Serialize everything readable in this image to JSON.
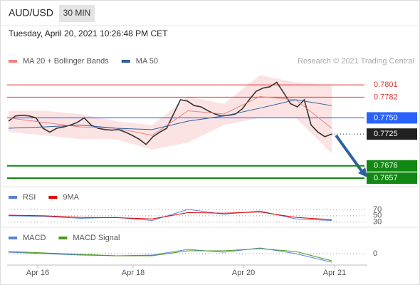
{
  "header": {
    "symbol": "AUD/USD",
    "interval": "30 MIN",
    "timestamp": "Tuesday, April 20, 2021 10:26:48 PM CET"
  },
  "credit": "Research © 2021 Trading Central",
  "x_labels": [
    "Apr 16",
    "Apr 18",
    "Apr 20",
    "Apr 21"
  ],
  "chart_data": [
    {
      "type": "line",
      "ylim": [
        0.7646,
        0.7822
      ],
      "levels": [
        {
          "value": 0.7801,
          "label": "0.7801",
          "color": "#e53935",
          "style": "thin"
        },
        {
          "value": 0.7782,
          "label": "0.7782",
          "color": "#e53935",
          "style": "thin"
        },
        {
          "value": 0.775,
          "label": "0.7750",
          "color": "#2962ff",
          "style": "box"
        },
        {
          "value": 0.7725,
          "label": "0.7725",
          "color": "#222222",
          "style": "current"
        },
        {
          "value": 0.7676,
          "label": "0.7676",
          "color": "#118811",
          "style": "box"
        },
        {
          "value": 0.7657,
          "label": "0.7657",
          "color": "#118811",
          "style": "box"
        }
      ],
      "series": [
        {
          "color": "#333333",
          "values": [
            0.7745,
            0.7753,
            0.7754,
            0.7753,
            0.775,
            0.7734,
            0.7728,
            0.7734,
            0.7736,
            0.7739,
            0.7743,
            0.775,
            0.7739,
            0.7734,
            0.7732,
            0.7731,
            0.7732,
            0.7728,
            0.7723,
            0.7717,
            0.7709,
            0.7721,
            0.7728,
            0.7734,
            0.7756,
            0.7778,
            0.7776,
            0.7769,
            0.7767,
            0.7761,
            0.7756,
            0.7753,
            0.7754,
            0.7756,
            0.7764,
            0.7778,
            0.7791,
            0.7796,
            0.7798,
            0.7805,
            0.7789,
            0.7772,
            0.7767,
            0.7778,
            0.7739,
            0.7728,
            0.7721,
            0.7725
          ]
        },
        {
          "name": "MA 20 + Bollinger Bands",
          "color": "#f08080",
          "values": [
            0.775,
            0.7743,
            0.7736,
            0.7734,
            0.7723,
            0.7761,
            0.7756,
            0.7783,
            0.7778,
            0.7734
          ],
          "upper": [
            0.7761,
            0.7761,
            0.7756,
            0.7745,
            0.7739,
            0.7783,
            0.7772,
            0.7816,
            0.7805,
            0.78
          ],
          "lower": [
            0.7728,
            0.7723,
            0.7717,
            0.7717,
            0.7701,
            0.7712,
            0.7739,
            0.775,
            0.775,
            0.7695
          ]
        },
        {
          "name": "MA 50",
          "color": "#2f5f9f",
          "values": [
            0.7734,
            0.7736,
            0.7739,
            0.7734,
            0.7732,
            0.7745,
            0.7753,
            0.7765,
            0.7778,
            0.7769
          ]
        }
      ]
    },
    {
      "type": "line",
      "ylim": [
        16,
        90
      ],
      "yticks": [
        30,
        50,
        70
      ],
      "series": [
        {
          "name": "RSI",
          "color": "#5b7fd6",
          "values": [
            50,
            48,
            42,
            45,
            35,
            70,
            55,
            65,
            40,
            35
          ]
        },
        {
          "name": "9MA",
          "color": "#e00000",
          "values": [
            52,
            50,
            45,
            44,
            40,
            60,
            58,
            62,
            45,
            38
          ]
        }
      ]
    },
    {
      "type": "line",
      "ylim": [
        -0.0016,
        0.0031
      ],
      "yticks": [
        0
      ],
      "series": [
        {
          "name": "MACD",
          "color": "#5b7fd6",
          "values": [
            0.0002,
            0,
            -0.0002,
            -0.0003,
            -0.0002,
            0.0006,
            0.0002,
            0.0008,
            0,
            -0.0012
          ]
        },
        {
          "name": "MACD Signal",
          "color": "#4a9a1a",
          "values": [
            0.0003,
            0.0001,
            -0.0001,
            -0.0003,
            -0.0003,
            0.0004,
            0.0004,
            0.0007,
            0.0003,
            -0.001
          ]
        }
      ]
    }
  ]
}
